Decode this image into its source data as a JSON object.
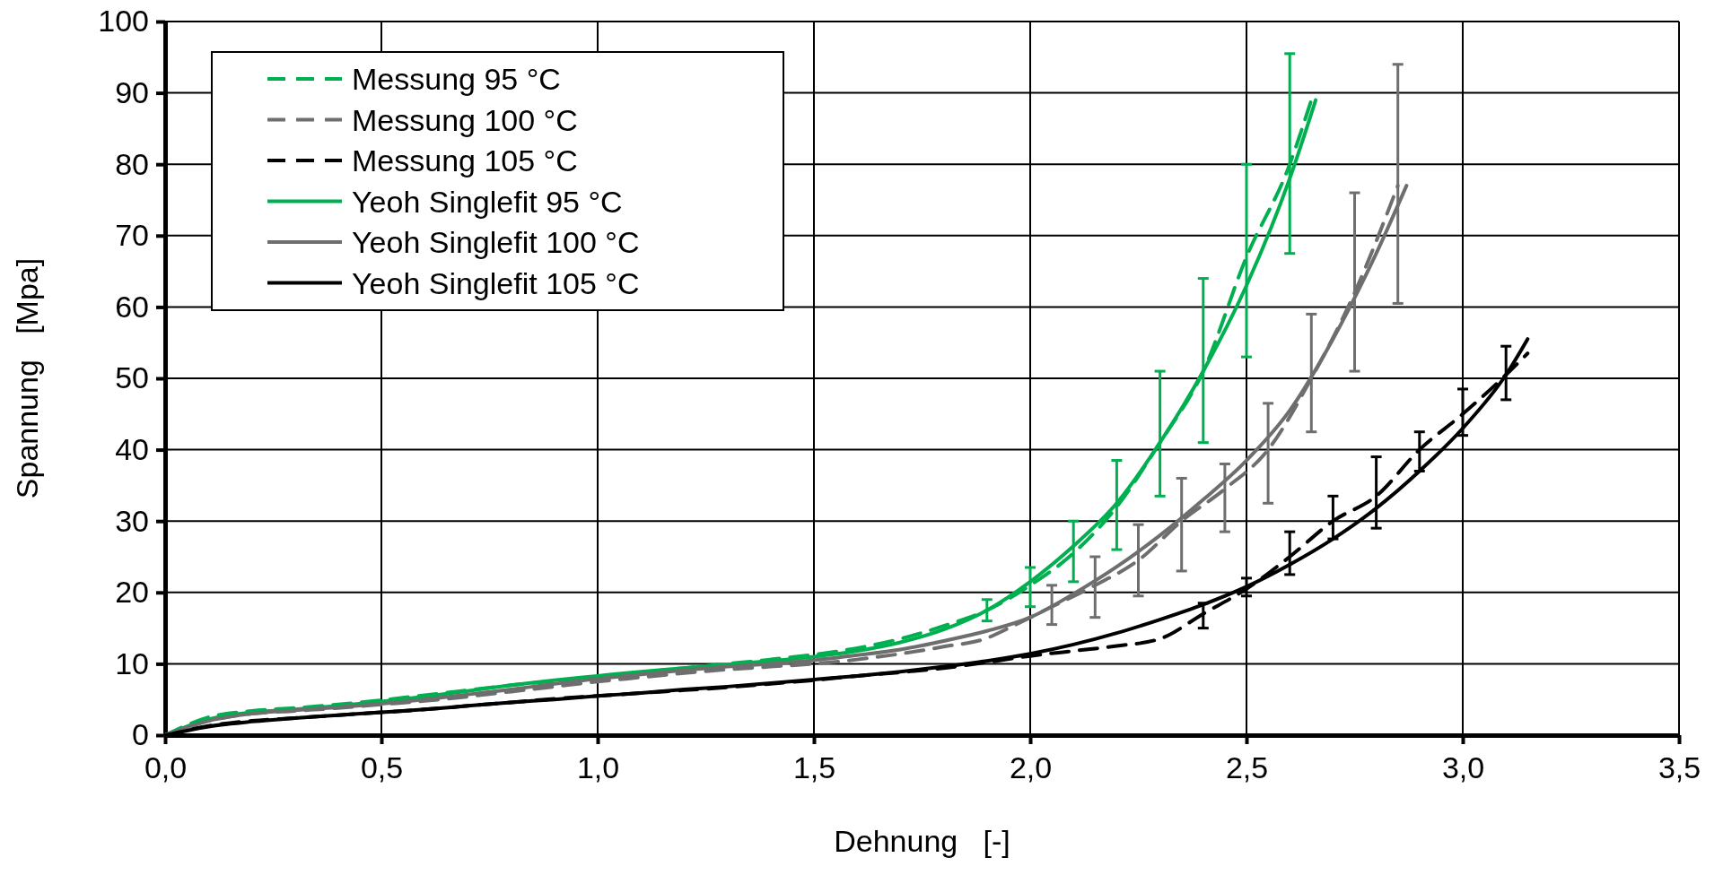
{
  "chart_data": {
    "type": "line",
    "xlabel": "Dehnung   [-]",
    "ylabel": "Spannung   [Mpa]",
    "xlim": [
      0,
      3.5
    ],
    "xticks": [
      {
        "value": 0,
        "label": "0,0"
      },
      {
        "value": 0.5,
        "label": "0,5"
      },
      {
        "value": 1,
        "label": "1,0"
      },
      {
        "value": 1.5,
        "label": "1,5"
      },
      {
        "value": 2,
        "label": "2,0"
      },
      {
        "value": 2.5,
        "label": "2,5"
      },
      {
        "value": 3,
        "label": "3,0"
      },
      {
        "value": 3.5,
        "label": "3,5"
      }
    ],
    "ylim": [
      0,
      100
    ],
    "yticks": [
      0,
      10,
      20,
      30,
      40,
      50,
      60,
      70,
      80,
      90,
      100
    ],
    "grid": true,
    "legend": "top left",
    "marker": "none",
    "series": [
      {
        "name": "Messung 95 °C",
        "color": "#00b050",
        "line_style": "dashed",
        "x": [
          0,
          0.1,
          0.2,
          0.3,
          0.4,
          0.5,
          0.6,
          0.7,
          0.8,
          0.9,
          1.0,
          1.1,
          1.2,
          1.3,
          1.4,
          1.5,
          1.6,
          1.7,
          1.8,
          1.9,
          2.0,
          2.1,
          2.2,
          2.3,
          2.4,
          2.5,
          2.6,
          2.65
        ],
        "values": [
          0,
          2.5,
          3.4,
          3.8,
          4.3,
          4.9,
          5.6,
          6.3,
          7.0,
          7.6,
          8.2,
          8.8,
          9.4,
          10.0,
          10.6,
          11.3,
          12.2,
          13.5,
          15.3,
          17.5,
          21,
          25.5,
          32,
          41,
          51,
          67,
          80,
          89
        ],
        "errors": [
          null,
          null,
          null,
          null,
          null,
          null,
          null,
          null,
          null,
          null,
          null,
          null,
          null,
          null,
          null,
          null,
          null,
          null,
          null,
          [
            16,
            19
          ],
          [
            18,
            23.5
          ],
          [
            21.5,
            30
          ],
          [
            26,
            38.5
          ],
          [
            33.5,
            51
          ],
          [
            41,
            64
          ],
          [
            53,
            80
          ],
          [
            67.5,
            95.5
          ],
          null
        ]
      },
      {
        "name": "Messung 100 °C",
        "color": "#6e6e6e",
        "line_style": "dashed",
        "x": [
          0,
          0.1,
          0.2,
          0.3,
          0.4,
          0.5,
          0.6,
          0.7,
          0.8,
          0.9,
          1.0,
          1.1,
          1.2,
          1.3,
          1.4,
          1.5,
          1.6,
          1.7,
          1.8,
          1.9,
          1.95,
          2.05,
          2.15,
          2.25,
          2.35,
          2.45,
          2.55,
          2.65,
          2.75,
          2.85
        ],
        "values": [
          0,
          2.0,
          3.0,
          3.4,
          3.8,
          4.3,
          4.8,
          5.4,
          6.1,
          6.8,
          7.5,
          8.1,
          8.7,
          9.2,
          9.6,
          10.0,
          10.6,
          11.4,
          12.4,
          13.6,
          15,
          18,
          21,
          24.5,
          30,
          34.5,
          40,
          50,
          62,
          77
        ],
        "errors": [
          null,
          null,
          null,
          null,
          null,
          null,
          null,
          null,
          null,
          null,
          null,
          null,
          null,
          null,
          null,
          null,
          null,
          null,
          null,
          null,
          null,
          [
            15.5,
            21
          ],
          [
            16.5,
            25
          ],
          [
            19.5,
            29.5
          ],
          [
            23,
            36
          ],
          [
            28.5,
            38
          ],
          [
            32.5,
            46.5
          ],
          [
            42.5,
            59
          ],
          [
            51,
            76
          ],
          [
            60.5,
            94
          ]
        ]
      },
      {
        "name": "Messung 105 °C",
        "color": "#000000",
        "line_style": "dashed",
        "x": [
          0,
          0.1,
          0.2,
          0.3,
          0.4,
          0.5,
          0.6,
          0.7,
          0.8,
          0.9,
          1.0,
          1.1,
          1.2,
          1.3,
          1.4,
          1.5,
          1.6,
          1.7,
          1.8,
          1.9,
          2.0,
          2.1,
          2.2,
          2.3,
          2.4,
          2.5,
          2.6,
          2.7,
          2.8,
          2.9,
          3.0,
          3.1,
          3.15
        ],
        "values": [
          0,
          1.3,
          2.0,
          2.4,
          2.8,
          3.2,
          3.6,
          4.1,
          4.6,
          5.1,
          5.5,
          5.9,
          6.3,
          6.7,
          7.2,
          7.7,
          8.3,
          8.8,
          9.4,
          10.2,
          11.1,
          11.8,
          12.5,
          13.5,
          17,
          20.5,
          25,
          30,
          33.5,
          40,
          45,
          50.5,
          53.5
        ],
        "errors": [
          null,
          null,
          null,
          null,
          null,
          null,
          null,
          null,
          null,
          null,
          null,
          null,
          null,
          null,
          null,
          null,
          null,
          null,
          null,
          null,
          null,
          null,
          null,
          null,
          [
            15,
            18.5
          ],
          [
            19.5,
            22
          ],
          [
            22.5,
            28.5
          ],
          [
            27.5,
            33.5
          ],
          [
            29,
            39
          ],
          [
            37,
            42.5
          ],
          [
            42,
            48.5
          ],
          [
            47,
            54.5
          ],
          null
        ]
      },
      {
        "name": "Yeoh Singlefit 95 °C",
        "color": "#00b050",
        "line_style": "solid",
        "x": [
          0,
          0.1,
          0.2,
          0.3,
          0.4,
          0.5,
          0.6,
          0.7,
          0.8,
          0.9,
          1.0,
          1.1,
          1.2,
          1.3,
          1.4,
          1.5,
          1.6,
          1.7,
          1.8,
          1.9,
          2.0,
          2.1,
          2.2,
          2.3,
          2.4,
          2.5,
          2.6,
          2.66
        ],
        "values": [
          0,
          2.2,
          3.2,
          3.6,
          4.1,
          4.7,
          5.4,
          6.2,
          7.0,
          7.7,
          8.3,
          8.9,
          9.4,
          9.9,
          10.4,
          11.0,
          11.8,
          13.0,
          14.8,
          17.5,
          21.5,
          26.5,
          32.5,
          41,
          51,
          63,
          78,
          89
        ]
      },
      {
        "name": "Yeoh Singlefit 100 °C",
        "color": "#6e6e6e",
        "line_style": "solid",
        "x": [
          0,
          0.1,
          0.2,
          0.3,
          0.4,
          0.5,
          0.6,
          0.7,
          0.8,
          0.9,
          1.0,
          1.1,
          1.2,
          1.3,
          1.4,
          1.5,
          1.6,
          1.7,
          1.8,
          1.9,
          2.0,
          2.1,
          2.2,
          2.3,
          2.4,
          2.5,
          2.6,
          2.7,
          2.8,
          2.87
        ],
        "values": [
          0,
          2.0,
          3.0,
          3.5,
          3.9,
          4.4,
          5.0,
          5.7,
          6.4,
          7.2,
          7.9,
          8.5,
          9.1,
          9.6,
          10.0,
          10.5,
          11.2,
          12.0,
          13.2,
          14.6,
          16.5,
          19.8,
          23.6,
          28,
          33,
          38.5,
          45.5,
          55.5,
          67.5,
          77
        ]
      },
      {
        "name": "Yeoh Singlefit 105 °C",
        "color": "#000000",
        "line_style": "solid",
        "x": [
          0,
          0.1,
          0.2,
          0.3,
          0.4,
          0.5,
          0.6,
          0.7,
          0.8,
          0.9,
          1.0,
          1.1,
          1.2,
          1.3,
          1.4,
          1.5,
          1.6,
          1.7,
          1.8,
          1.9,
          2.0,
          2.1,
          2.2,
          2.3,
          2.4,
          2.5,
          2.6,
          2.7,
          2.8,
          2.9,
          3.0,
          3.1,
          3.15
        ],
        "values": [
          0,
          1.2,
          1.9,
          2.4,
          2.8,
          3.2,
          3.6,
          4.1,
          4.6,
          5.0,
          5.5,
          5.9,
          6.4,
          6.8,
          7.3,
          7.8,
          8.3,
          8.9,
          9.6,
          10.4,
          11.4,
          12.7,
          14.3,
          16.2,
          18.3,
          20.8,
          23.9,
          27.5,
          31.8,
          37,
          43,
          50.5,
          55.5
        ]
      }
    ]
  }
}
